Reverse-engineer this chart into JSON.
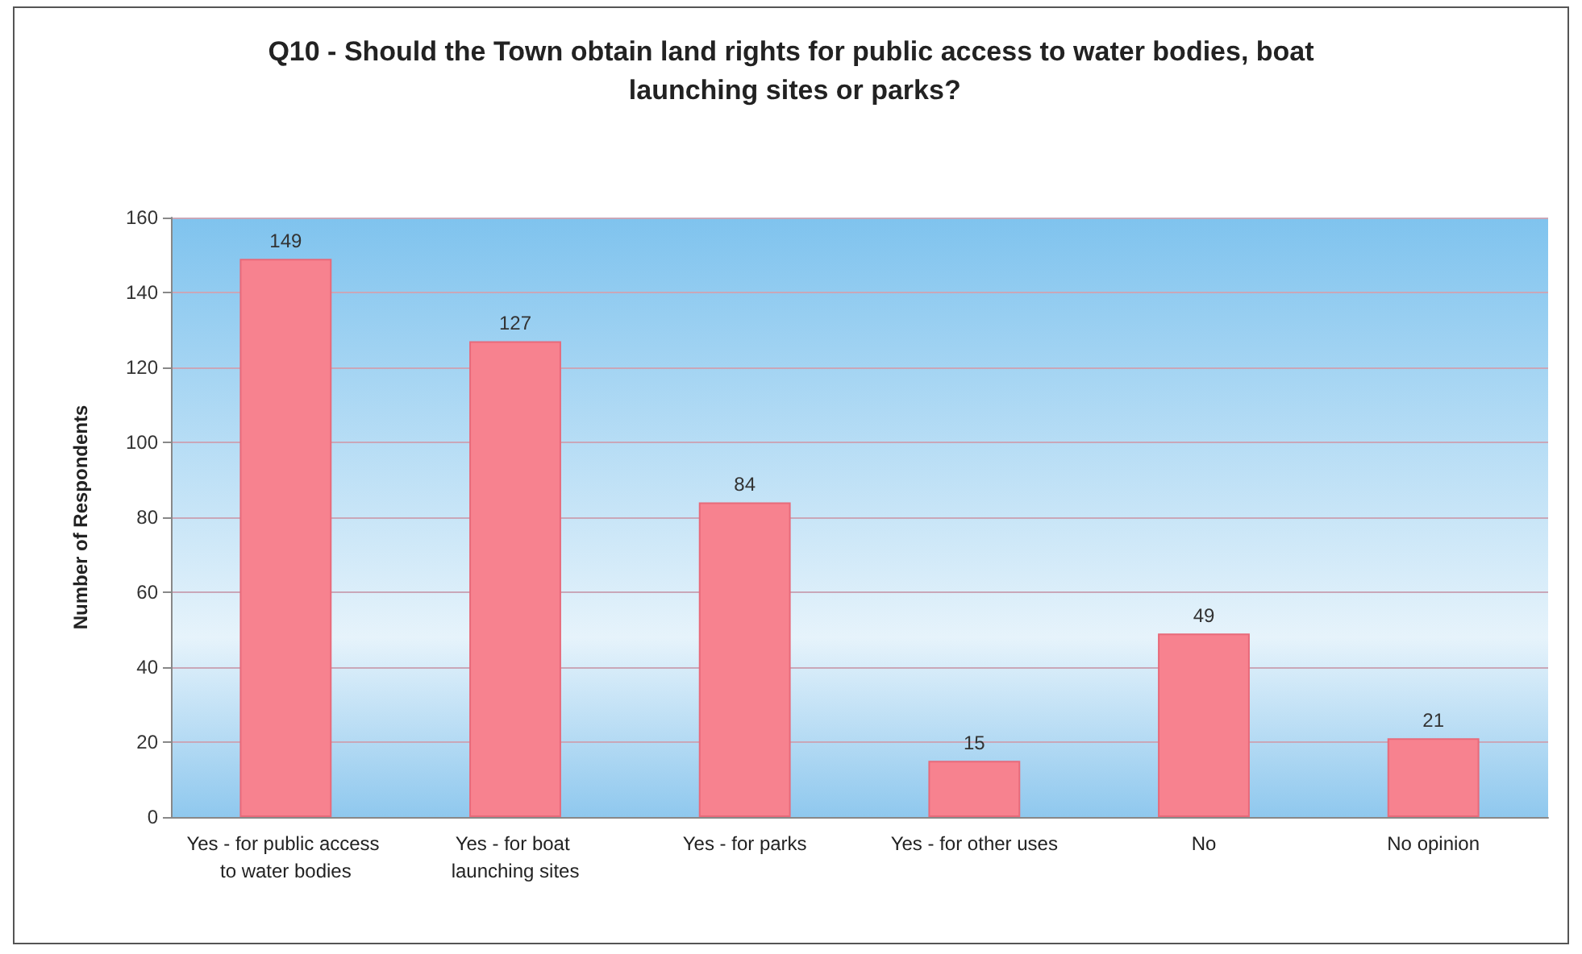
{
  "chart_data": {
    "type": "bar",
    "title": "Q10 - Should the Town obtain land rights for public access to water bodies, boat launching sites or parks?",
    "ylabel": "Number of Respondents",
    "categories": [
      "Yes - for public access to water bodies",
      "Yes - for boat launching sites",
      "Yes - for parks",
      "Yes - for other uses",
      "No",
      "No opinion"
    ],
    "values": [
      149,
      127,
      84,
      15,
      49,
      21
    ],
    "color": "#f7828f",
    "ylim": [
      0,
      160
    ],
    "yticks": [
      0,
      20,
      40,
      60,
      80,
      100,
      120,
      140,
      160
    ],
    "grid": "y",
    "data_labels": true
  }
}
